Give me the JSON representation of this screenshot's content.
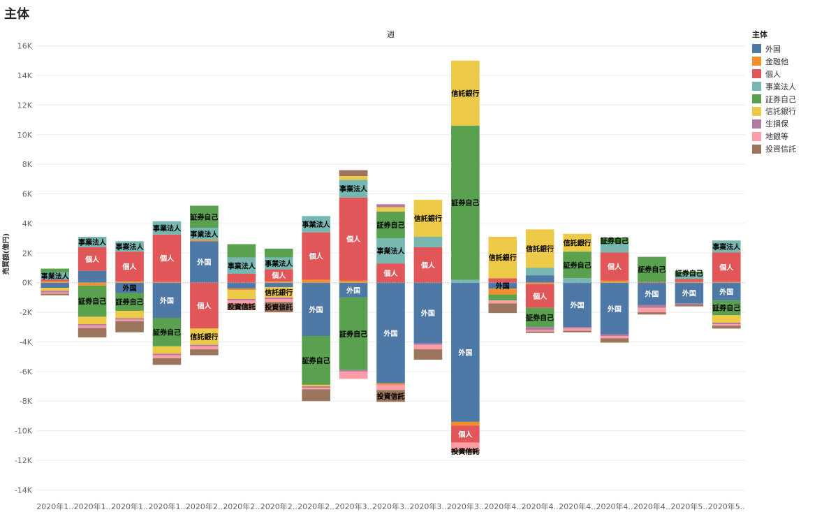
{
  "page": {
    "title": "主体",
    "top_axis_title": "週"
  },
  "legend": {
    "title": "主体"
  },
  "colors": {
    "外国": "#4e79a7",
    "金融他": "#f28e2b",
    "個人": "#e15759",
    "事業法人": "#76b7b2",
    "証券自己": "#59a14f",
    "信託銀行": "#edc948",
    "生損保": "#b07aa1",
    "地銀等": "#ff9da7",
    "投資信託": "#9c755f"
  },
  "chart_data": {
    "type": "bar",
    "stacked": true,
    "title": "",
    "ylabel": "売買額(億円)",
    "xlabel": "",
    "ylim": [
      -14500,
      16500
    ],
    "yticks": [
      "16K",
      "14K",
      "12K",
      "10K",
      "8K",
      "6K",
      "4K",
      "2K",
      "0K",
      "-2K",
      "-4K",
      "-6K",
      "-8K",
      "-10K",
      "-12K",
      "-14K"
    ],
    "ytick_values": [
      16000,
      14000,
      12000,
      10000,
      8000,
      6000,
      4000,
      2000,
      0,
      -2000,
      -4000,
      -6000,
      -8000,
      -10000,
      -12000,
      -14000
    ],
    "categories": [
      "2020年1..",
      "2020年1..",
      "2020年1..",
      "2020年1..",
      "2020年2..",
      "2020年2..",
      "2020年2..",
      "2020年2..",
      "2020年3..",
      "2020年3..",
      "2020年3..",
      "2020年3..",
      "2020年4..",
      "2020年4..",
      "2020年4..",
      "2020年4..",
      "2020年4..",
      "2020年5..",
      "2020年5.."
    ],
    "series_order": [
      "外国",
      "金融他",
      "個人",
      "事業法人",
      "証券自己",
      "信託銀行",
      "生損保",
      "地銀等",
      "投資信託"
    ],
    "series": [
      {
        "name": "外国",
        "values": [
          -350,
          800,
          -700,
          -2400,
          2800,
          -400,
          -300,
          -3600,
          -1000,
          -6800,
          -4100,
          -9400,
          -400,
          500,
          -3000,
          -3500,
          -1500,
          -1400,
          -1200
        ]
      },
      {
        "name": "金融他",
        "values": [
          100,
          -200,
          100,
          50,
          100,
          -100,
          100,
          200,
          150,
          -100,
          0,
          -250,
          -400,
          -100,
          0,
          150,
          0,
          50,
          50
        ]
      },
      {
        "name": "個人",
        "values": [
          100,
          1600,
          2000,
          3200,
          -3100,
          600,
          800,
          3200,
          5600,
          1300,
          2400,
          -1150,
          300,
          -1600,
          0,
          1900,
          50,
          200,
          2000
        ]
      },
      {
        "name": "事業法人",
        "values": [
          500,
          700,
          700,
          900,
          800,
          1100,
          800,
          1100,
          1200,
          1700,
          700,
          200,
          0,
          500,
          300,
          600,
          0,
          300,
          800
        ]
      },
      {
        "name": "証券自己",
        "values": [
          250,
          -2100,
          -1200,
          -1900,
          1500,
          900,
          600,
          -3300,
          -4900,
          1800,
          0,
          10400,
          -400,
          -1300,
          1800,
          400,
          1700,
          200,
          -1000
        ]
      },
      {
        "name": "信託銀行",
        "values": [
          -200,
          -500,
          -500,
          -500,
          -1100,
          -600,
          -700,
          -100,
          250,
          300,
          2500,
          4400,
          2800,
          2600,
          1200,
          0,
          0,
          0,
          -500
        ]
      },
      {
        "name": "生損保",
        "values": [
          -100,
          -100,
          -100,
          -100,
          -100,
          -100,
          -100,
          -100,
          -100,
          200,
          -100,
          0,
          0,
          -200,
          -100,
          -100,
          -200,
          -100,
          -100
        ]
      },
      {
        "name": "地銀等",
        "values": [
          -100,
          -150,
          -100,
          -200,
          -200,
          -200,
          -200,
          -100,
          -500,
          -350,
          -300,
          -450,
          -200,
          -100,
          -150,
          -150,
          -300,
          0,
          -100
        ]
      },
      {
        "name": "投資信託",
        "values": [
          -100,
          -650,
          -750,
          -450,
          -400,
          -450,
          -700,
          -800,
          400,
          -800,
          -700,
          -250,
          -650,
          -100,
          -100,
          -300,
          -150,
          -100,
          -200
        ]
      }
    ],
    "labels": [
      {
        "cat": 0,
        "series": "事業法人",
        "text": "事業法人",
        "color": "#000000"
      },
      {
        "cat": 1,
        "series": "個人",
        "text": "個人",
        "color": "#ffffff"
      },
      {
        "cat": 1,
        "series": "事業法人",
        "text": "事業法人",
        "color": "#000000"
      },
      {
        "cat": 1,
        "series": "証券自己",
        "text": "証券自己",
        "color": "#000000"
      },
      {
        "cat": 2,
        "series": "個人",
        "text": "個人",
        "color": "#ffffff"
      },
      {
        "cat": 2,
        "series": "事業法人",
        "text": "事業法人",
        "color": "#000000"
      },
      {
        "cat": 2,
        "series": "証券自己",
        "text": "証券自己",
        "color": "#000000"
      },
      {
        "cat": 2,
        "series": "外国",
        "text": "外国",
        "color": "#000000"
      },
      {
        "cat": 3,
        "series": "個人",
        "text": "個人",
        "color": "#ffffff"
      },
      {
        "cat": 3,
        "series": "事業法人",
        "text": "事業法人",
        "color": "#000000"
      },
      {
        "cat": 3,
        "series": "証券自己",
        "text": "証券自己",
        "color": "#000000"
      },
      {
        "cat": 3,
        "series": "外国",
        "text": "外国",
        "color": "#ffffff"
      },
      {
        "cat": 4,
        "series": "外国",
        "text": "外国",
        "color": "#ffffff"
      },
      {
        "cat": 4,
        "series": "事業法人",
        "text": "事業法人",
        "color": "#000000"
      },
      {
        "cat": 4,
        "series": "証券自己",
        "text": "証券自己",
        "color": "#000000"
      },
      {
        "cat": 4,
        "series": "信託銀行",
        "text": "信託銀行",
        "color": "#000000"
      },
      {
        "cat": 4,
        "series": "個人",
        "text": "個人",
        "color": "#ffffff"
      },
      {
        "cat": 5,
        "series": "事業法人",
        "text": "事業法人",
        "color": "#000000"
      },
      {
        "cat": 5,
        "series": "投資信託",
        "text": "投資信託",
        "color": "#000000"
      },
      {
        "cat": 6,
        "series": "個人",
        "text": "個人",
        "color": "#ffffff"
      },
      {
        "cat": 6,
        "series": "事業法人",
        "text": "事業法人",
        "color": "#000000"
      },
      {
        "cat": 6,
        "series": "投資信託",
        "text": "投資信託",
        "color": "#000000"
      },
      {
        "cat": 6,
        "series": "信託銀行",
        "text": "信託銀行",
        "color": "#000000"
      },
      {
        "cat": 7,
        "series": "個人",
        "text": "個人",
        "color": "#ffffff"
      },
      {
        "cat": 7,
        "series": "事業法人",
        "text": "事業法人",
        "color": "#000000"
      },
      {
        "cat": 7,
        "series": "証券自己",
        "text": "証券自己",
        "color": "#000000"
      },
      {
        "cat": 7,
        "series": "外国",
        "text": "外国",
        "color": "#ffffff"
      },
      {
        "cat": 8,
        "series": "個人",
        "text": "個人",
        "color": "#ffffff"
      },
      {
        "cat": 8,
        "series": "事業法人",
        "text": "事業法人",
        "color": "#000000"
      },
      {
        "cat": 8,
        "series": "証券自己",
        "text": "証券自己",
        "color": "#000000"
      },
      {
        "cat": 8,
        "series": "外国",
        "text": "外国",
        "color": "#ffffff"
      },
      {
        "cat": 9,
        "series": "個人",
        "text": "個人",
        "color": "#ffffff"
      },
      {
        "cat": 9,
        "series": "事業法人",
        "text": "事業法人",
        "color": "#000000"
      },
      {
        "cat": 9,
        "series": "証券自己",
        "text": "証券自己",
        "color": "#000000"
      },
      {
        "cat": 9,
        "series": "投資信託",
        "text": "投資信託",
        "color": "#000000"
      },
      {
        "cat": 9,
        "series": "外国",
        "text": "外国",
        "color": "#ffffff"
      },
      {
        "cat": 10,
        "series": "個人",
        "text": "個人",
        "color": "#ffffff"
      },
      {
        "cat": 10,
        "series": "信託銀行",
        "text": "信託銀行",
        "color": "#000000"
      },
      {
        "cat": 10,
        "series": "外国",
        "text": "外国",
        "color": "#ffffff"
      },
      {
        "cat": 11,
        "series": "証券自己",
        "text": "証券自己",
        "color": "#000000"
      },
      {
        "cat": 11,
        "series": "信託銀行",
        "text": "信託銀行",
        "color": "#000000"
      },
      {
        "cat": 11,
        "series": "投資信託",
        "text": "投資信託",
        "color": "#000000"
      },
      {
        "cat": 11,
        "series": "個人",
        "text": "個人",
        "color": "#ffffff"
      },
      {
        "cat": 11,
        "series": "外国",
        "text": "外国",
        "color": "#ffffff"
      },
      {
        "cat": 12,
        "series": "信託銀行",
        "text": "信託銀行",
        "color": "#000000"
      },
      {
        "cat": 12,
        "series": "外国",
        "text": "外国",
        "color": "#000000"
      },
      {
        "cat": 13,
        "series": "信託銀行",
        "text": "信託銀行",
        "color": "#000000"
      },
      {
        "cat": 13,
        "series": "証券自己",
        "text": "証券自己",
        "color": "#000000"
      },
      {
        "cat": 13,
        "series": "個人",
        "text": "個人",
        "color": "#ffffff"
      },
      {
        "cat": 14,
        "series": "証券自己",
        "text": "証券自己",
        "color": "#000000"
      },
      {
        "cat": 14,
        "series": "信託銀行",
        "text": "信託銀行",
        "color": "#000000"
      },
      {
        "cat": 14,
        "series": "外国",
        "text": "外国",
        "color": "#ffffff"
      },
      {
        "cat": 15,
        "series": "個人",
        "text": "個人",
        "color": "#ffffff"
      },
      {
        "cat": 15,
        "series": "証券自己",
        "text": "証券自己",
        "color": "#000000"
      },
      {
        "cat": 15,
        "series": "外国",
        "text": "外国",
        "color": "#ffffff"
      },
      {
        "cat": 16,
        "series": "証券自己",
        "text": "証券自己",
        "color": "#000000"
      },
      {
        "cat": 16,
        "series": "外国",
        "text": "外国",
        "color": "#ffffff"
      },
      {
        "cat": 17,
        "series": "証券自己",
        "text": "証券自己",
        "color": "#000000"
      },
      {
        "cat": 17,
        "series": "外国",
        "text": "外国",
        "color": "#ffffff"
      },
      {
        "cat": 18,
        "series": "個人",
        "text": "個人",
        "color": "#ffffff"
      },
      {
        "cat": 18,
        "series": "事業法人",
        "text": "事業法人",
        "color": "#000000"
      },
      {
        "cat": 18,
        "series": "証券自己",
        "text": "証券自己",
        "color": "#000000"
      },
      {
        "cat": 18,
        "series": "外国",
        "text": "外国",
        "color": "#ffffff"
      }
    ]
  }
}
